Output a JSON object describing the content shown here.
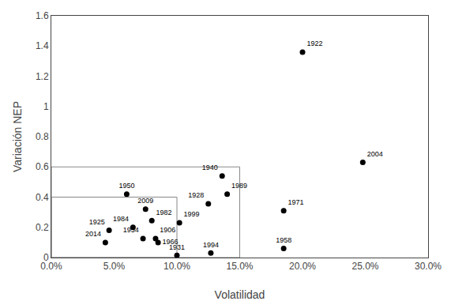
{
  "chart_data": {
    "type": "scatter",
    "xlabel": "Volatilidad",
    "ylabel": "Variación NEP",
    "x": [
      0.2,
      0.248,
      0.136,
      0.14,
      0.06,
      0.125,
      0.185,
      0.075,
      0.08,
      0.065,
      0.102,
      0.046,
      0.073,
      0.083,
      0.043,
      0.1,
      0.127,
      0.185,
      0.085
    ],
    "values": [
      1.36,
      0.63,
      0.54,
      0.42,
      0.42,
      0.355,
      0.31,
      0.32,
      0.245,
      0.2,
      0.23,
      0.18,
      0.125,
      0.125,
      0.1,
      0.015,
      0.03,
      0.06,
      0.1
    ],
    "point_labels": [
      "1922",
      "2004",
      "1940",
      "1989",
      "1950",
      "1928",
      "1971",
      "2009",
      "1982",
      "1984",
      "1999",
      "1925",
      "1954",
      "1906",
      "2014",
      "1931",
      "1994",
      "1958",
      "1966"
    ],
    "color": "#000000",
    "marker": "circle",
    "rectangles": [
      {
        "x0": 0.0,
        "y0": 0.0,
        "x1": 0.1,
        "y1": 0.4,
        "color": "#888888"
      },
      {
        "x0": 0.0,
        "y0": 0.0,
        "x1": 0.15,
        "y1": 0.6,
        "color": "#888888"
      }
    ],
    "xlim": [
      0.0,
      0.3
    ],
    "xticks": [
      {
        "value": 0.0,
        "label": "0.0%"
      },
      {
        "value": 0.05,
        "label": "5.0%"
      },
      {
        "value": 0.1,
        "label": "10.0%"
      },
      {
        "value": 0.15,
        "label": "15.0%"
      },
      {
        "value": 0.2,
        "label": "20.0%"
      },
      {
        "value": 0.25,
        "label": "25.0%"
      },
      {
        "value": 0.3,
        "label": "30.0%"
      }
    ],
    "ylim": [
      0.0,
      1.6
    ],
    "yticks": [
      0,
      0.2,
      0.4,
      0.6,
      0.8,
      1,
      1.2,
      1.4,
      1.6
    ],
    "grid": false
  }
}
